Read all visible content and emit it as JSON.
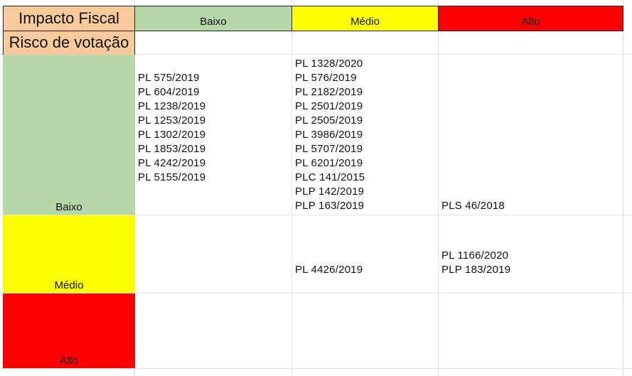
{
  "corner": {
    "impacto_fiscal": "Impacto Fiscal",
    "risco_votacao": "Risco de votação"
  },
  "columns": [
    "Baixo",
    "Médio",
    "Alto"
  ],
  "rows": [
    "Baixo",
    "Médio",
    "Alto"
  ],
  "colors": {
    "baixo": "#b6d7a8",
    "medio": "#ffff00",
    "alto": "#ff0000",
    "header": "#f9cb9c"
  },
  "cells": {
    "baixo_baixo": [
      "PL 575/2019",
      "PL 604/2019",
      "PL 1238/2019",
      "PL 1253/2019",
      "PL 1302/2019",
      "PL 1853/2019",
      "PL 4242/2019",
      "PL 5155/2019"
    ],
    "baixo_medio": [
      "PL 1328/2020",
      "PL 576/2019",
      "PL 2182/2019",
      "PL 2501/2019",
      "PL 2505/2019",
      "PL 3986/2019",
      "PL 5707/2019",
      "PL 6201/2019",
      "PLC 141/2015",
      "PLP 142/2019",
      "PLP 163/2019"
    ],
    "baixo_alto": [
      "PLS 46/2018"
    ],
    "medio_medio": [
      "PL 4426/2019"
    ],
    "medio_alto": [
      "PL 1166/2020",
      "PLP 183/2019"
    ]
  }
}
